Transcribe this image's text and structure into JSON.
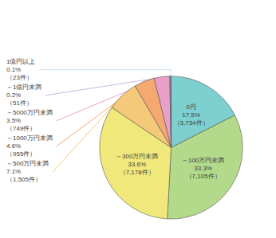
{
  "chart_data": {
    "type": "pie",
    "categories": [
      "0円",
      "～100万円未満",
      "～300万円未満",
      "～500万円未満",
      "～1000万円未満",
      "～5000万円未満",
      "～1億円未満",
      "1億円以上"
    ],
    "values": [
      17.5,
      33.3,
      33.6,
      7.1,
      4.6,
      3.5,
      0.2,
      0.1
    ],
    "value_labels": [
      "17.5%",
      "33.3%",
      "33.6%",
      "7.1%",
      "4.6%",
      "3.5%",
      "0.2%",
      "0.1%"
    ],
    "count_labels": [
      "（3,734件）",
      "（7,105件）",
      "（7,178件）",
      "（1,505件）",
      "（955件）",
      "（749件）",
      "（51件）",
      "（23件）"
    ],
    "colors": [
      "#7ecfcf",
      "#b3d98a",
      "#f0e87a",
      "#f5c97a",
      "#f5a870",
      "#e8a0c8",
      "#c8b8e0",
      "#c8dff0"
    ],
    "data_labels": true
  }
}
